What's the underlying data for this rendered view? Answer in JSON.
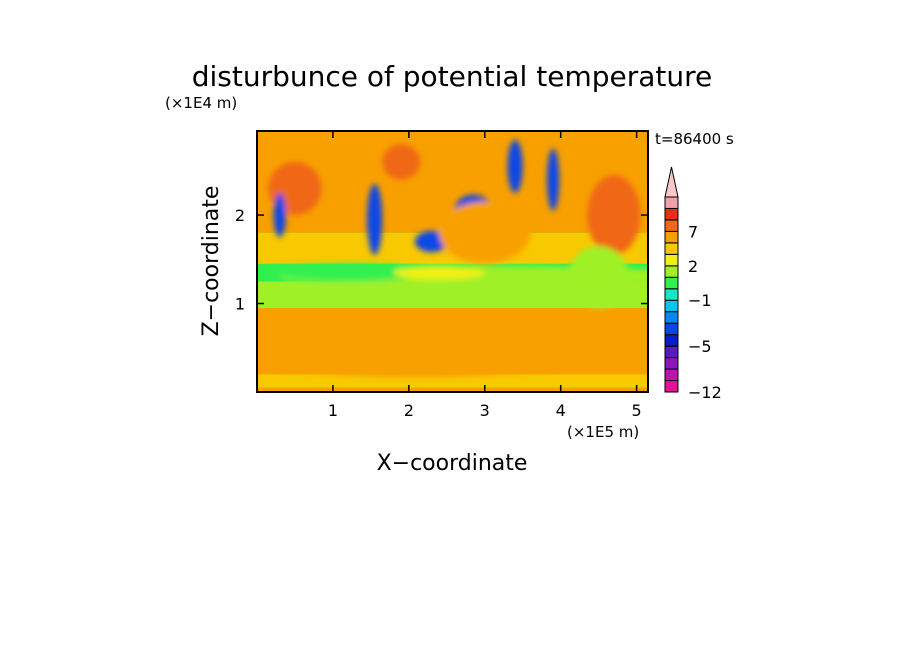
{
  "chart_data": {
    "type": "heatmap",
    "title": "disturbunce of potential temperature",
    "annotation": "t=86400 s",
    "xlabel": "X−coordinate",
    "ylabel": "Z−coordinate",
    "x_unit": "(×1E5 m)",
    "y_unit": "(×1E4 m)",
    "xlim": [
      0,
      5.15
    ],
    "ylim": [
      0,
      2.95
    ],
    "x_ticks": [
      1,
      2,
      3,
      4,
      5
    ],
    "y_ticks": [
      1,
      2
    ],
    "x_tick_labels": [
      "1",
      "2",
      "3",
      "4",
      "5"
    ],
    "y_tick_labels": [
      "1",
      "2"
    ],
    "colorbar": {
      "levels": [
        -12,
        -10,
        -8,
        -6,
        -5,
        -4,
        -3,
        -2,
        -1,
        0,
        1,
        2,
        3,
        5,
        7,
        9,
        11
      ],
      "labeled_levels": [
        -12,
        -5,
        -1,
        2,
        7
      ],
      "labels": [
        "−12",
        "−5",
        "−1",
        "2",
        "7"
      ],
      "extend": "max",
      "colors": [
        "#e6109a",
        "#c012b0",
        "#8e16b8",
        "#5a1ac0",
        "#0a1ec8",
        "#0a46e6",
        "#0a86f6",
        "#00c8f0",
        "#10e8c8",
        "#30f050",
        "#a0f028",
        "#f0f018",
        "#f8c800",
        "#f8a000",
        "#f06818",
        "#e83018",
        "#f0a0a8",
        "#f8c8c8"
      ]
    },
    "features": [
      {
        "x": 2.1,
        "z": 0.45,
        "value": 3,
        "rx": 2.3,
        "rz": 0.28
      },
      {
        "x": 3.1,
        "z": 1.3,
        "value": 0,
        "rx": 2.8,
        "rz": 0.12
      },
      {
        "x": 1.2,
        "z": 1.35,
        "value": -1,
        "rx": 1.0,
        "rz": 0.1
      },
      {
        "x": 2.4,
        "z": 1.35,
        "value": 1,
        "rx": 0.6,
        "rz": 0.08
      },
      {
        "x": 2.85,
        "z": 2.05,
        "value": -5,
        "rx": 0.25,
        "rz": 0.18
      },
      {
        "x": 2.3,
        "z": 1.7,
        "value": -5,
        "rx": 0.22,
        "rz": 0.12
      },
      {
        "x": 3.0,
        "z": 1.8,
        "value": 3,
        "rx": 0.6,
        "rz": 0.35
      },
      {
        "x": 0.5,
        "z": 2.3,
        "value": 5,
        "rx": 0.35,
        "rz": 0.3
      },
      {
        "x": 1.55,
        "z": 1.95,
        "value": -5,
        "rx": 0.1,
        "rz": 0.4
      },
      {
        "x": 1.9,
        "z": 2.6,
        "value": 5,
        "rx": 0.25,
        "rz": 0.2
      },
      {
        "x": 3.4,
        "z": 2.55,
        "value": -5,
        "rx": 0.1,
        "rz": 0.3
      },
      {
        "x": 3.9,
        "z": 2.4,
        "value": -5,
        "rx": 0.08,
        "rz": 0.35
      },
      {
        "x": 4.7,
        "z": 2.0,
        "value": 5,
        "rx": 0.35,
        "rz": 0.45
      },
      {
        "x": 0.3,
        "z": 2.0,
        "value": -5,
        "rx": 0.08,
        "rz": 0.25
      },
      {
        "x": 4.5,
        "z": 1.3,
        "value": 0,
        "rx": 0.4,
        "rz": 0.35
      }
    ]
  }
}
